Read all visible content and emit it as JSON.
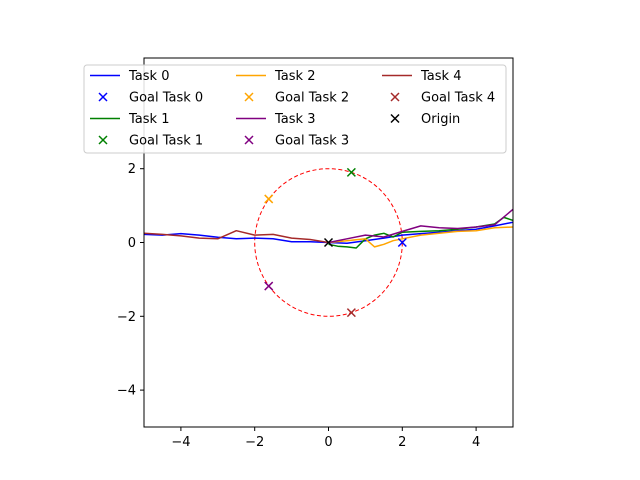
{
  "chart_data": {
    "type": "line",
    "xlim": [
      -5,
      5
    ],
    "ylim": [
      -5,
      5
    ],
    "xticks": [
      -4,
      -2,
      0,
      2,
      4
    ],
    "yticks": [
      -4,
      -2,
      0,
      2
    ],
    "grid": false,
    "legend_placement": "top",
    "legend_columns": 3,
    "circle": {
      "center": [
        0,
        0
      ],
      "radius": 2,
      "color": "#ff0000",
      "style": "dashed"
    },
    "series": [
      {
        "name": "Task 0",
        "color": "#0000ff",
        "x": [
          -5,
          -4.5,
          -4,
          -3.5,
          -3,
          -2.5,
          -2,
          -1.5,
          -1,
          -0.5,
          0,
          0.5,
          1,
          1.5,
          2,
          2.5,
          3,
          3.5,
          4,
          4.5,
          5
        ],
        "y": [
          0.22,
          0.2,
          0.24,
          0.2,
          0.14,
          0.1,
          0.12,
          0.1,
          0.02,
          0.02,
          0.0,
          -0.02,
          0.05,
          0.12,
          0.2,
          0.24,
          0.28,
          0.32,
          0.36,
          0.45,
          0.55
        ]
      },
      {
        "name": "Task 1",
        "color": "#008000",
        "x": [
          0,
          0.25,
          0.5,
          0.75,
          1,
          1.25,
          1.5,
          1.75,
          2,
          2.5,
          3,
          3.5,
          4,
          4.5,
          4.75,
          5
        ],
        "y": [
          -0.05,
          -0.1,
          -0.12,
          -0.15,
          0.1,
          0.2,
          0.25,
          0.15,
          0.28,
          0.3,
          0.32,
          0.36,
          0.42,
          0.5,
          0.68,
          0.6
        ]
      },
      {
        "name": "Task 2",
        "color": "#ffa500",
        "x": [
          0,
          0.5,
          1,
          1.25,
          1.5,
          1.75,
          2,
          2.5,
          3,
          3.5,
          4,
          4.5,
          5
        ],
        "y": [
          0.0,
          0.05,
          0.1,
          -0.12,
          -0.05,
          0.05,
          0.1,
          0.2,
          0.25,
          0.3,
          0.32,
          0.4,
          0.42
        ]
      },
      {
        "name": "Task 3",
        "color": "#800080",
        "x": [
          0,
          0.5,
          1,
          1.5,
          2,
          2.5,
          3,
          3.5,
          4,
          4.5,
          5
        ],
        "y": [
          0.0,
          0.1,
          0.2,
          0.15,
          0.3,
          0.45,
          0.4,
          0.38,
          0.42,
          0.48,
          0.9
        ]
      },
      {
        "name": "Task 4",
        "color": "#a52a2a",
        "x": [
          -5,
          -4.5,
          -4,
          -3.5,
          -3,
          -2.5,
          -2,
          -1.5,
          -1,
          -0.5,
          0
        ],
        "y": [
          0.25,
          0.22,
          0.18,
          0.12,
          0.1,
          0.32,
          0.2,
          0.22,
          0.12,
          0.08,
          0.0
        ]
      }
    ],
    "markers": [
      {
        "name": "Goal Task 0",
        "color": "#0000ff",
        "x": 2.0,
        "y": 0.0
      },
      {
        "name": "Goal Task 1",
        "color": "#008000",
        "x": 0.62,
        "y": 1.9
      },
      {
        "name": "Goal Task 2",
        "color": "#ffa500",
        "x": -1.62,
        "y": 1.18
      },
      {
        "name": "Goal Task 3",
        "color": "#800080",
        "x": -1.62,
        "y": -1.18
      },
      {
        "name": "Goal Task 4",
        "color": "#a52a2a",
        "x": 0.62,
        "y": -1.9
      },
      {
        "name": "Origin",
        "color": "#000000",
        "x": 0.0,
        "y": 0.0
      }
    ]
  }
}
